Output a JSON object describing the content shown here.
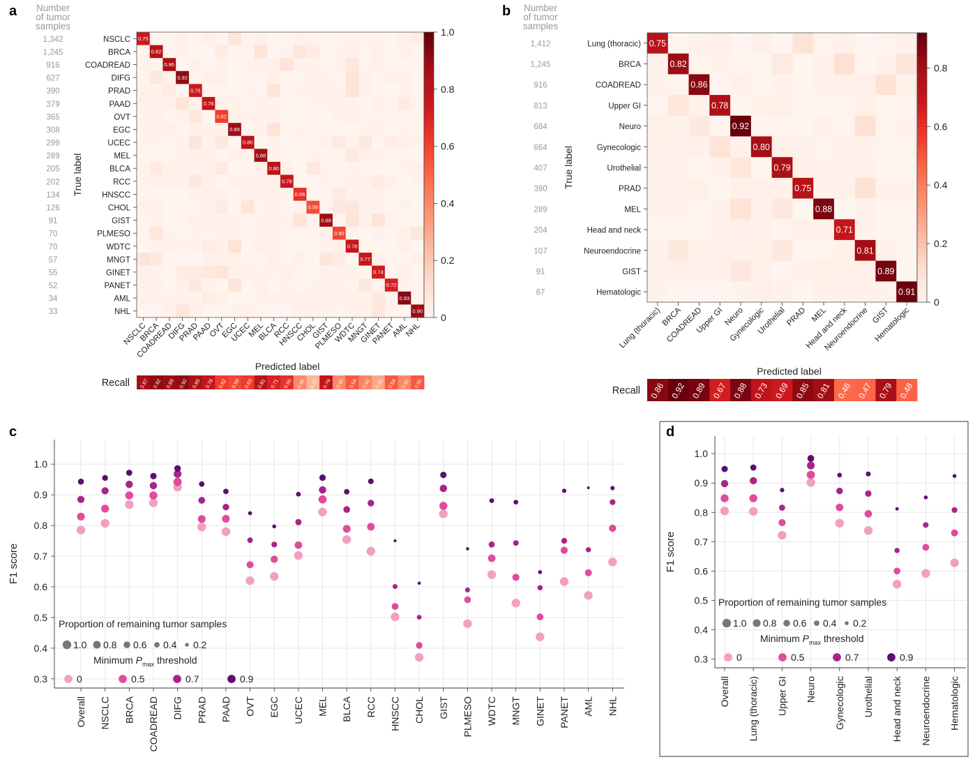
{
  "chart_data": [
    {
      "panel": "a",
      "type": "heatmap",
      "samples_header": "Number of tumor samples",
      "ylabel": "True label",
      "xlabel": "Predicted label",
      "recall_label": "Recall",
      "colorbar_ticks": [
        "1.0",
        "0.8",
        "0.6",
        "0.4",
        "0.2",
        "0"
      ],
      "vmax": 1.0,
      "classes": [
        "NSCLC",
        "BRCA",
        "COADREAD",
        "DIFG",
        "PRAD",
        "PAAD",
        "OVT",
        "EGC",
        "UCEC",
        "MEL",
        "BLCA",
        "RCC",
        "HNSCC",
        "CHOL",
        "GIST",
        "PLMESO",
        "WDTC",
        "MNGT",
        "GINET",
        "PANET",
        "AML",
        "NHL"
      ],
      "sample_counts": [
        "1,342",
        "1,245",
        "916",
        "627",
        "390",
        "379",
        "365",
        "308",
        "299",
        "289",
        "205",
        "202",
        "134",
        "126",
        "91",
        "70",
        "70",
        "57",
        "55",
        "52",
        "34",
        "33"
      ],
      "diagonal": [
        "0.75",
        "0.82",
        "0.86",
        "0.92",
        "0.75",
        "0.78",
        "0.62",
        "0.89",
        "0.80",
        "0.88",
        "0.80",
        "0.78",
        "0.66",
        "0.58",
        "0.89",
        "0.60",
        "0.78",
        "0.77",
        "0.74",
        "0.72",
        "0.93",
        "0.90"
      ],
      "recall": [
        "0.87",
        "0.92",
        "0.89",
        "0.92",
        "0.85",
        "0.78",
        "0.62",
        "0.59",
        "0.63",
        "0.81",
        "0.71",
        "0.66",
        "0.40",
        "0.27",
        "0.79",
        "0.40",
        "0.54",
        "0.42",
        "0.31",
        "0.54",
        "0.41",
        "0.55"
      ]
    },
    {
      "panel": "b",
      "type": "heatmap",
      "samples_header": "Number of tumor samples",
      "ylabel": "True label",
      "xlabel": "Predicted label",
      "recall_label": "Recall",
      "colorbar_ticks": [
        "0.8",
        "0.6",
        "0.4",
        "0.2",
        "0"
      ],
      "vmax": 0.92,
      "classes": [
        "Lung (thoracic)",
        "BRCA",
        "COADREAD",
        "Upper GI",
        "Neuro",
        "Gynecologic",
        "Urothelial",
        "PRAD",
        "MEL",
        "Head and neck",
        "Neuroendocrine",
        "GIST",
        "Hematologic"
      ],
      "sample_counts": [
        "1,412",
        "1,245",
        "916",
        "813",
        "684",
        "664",
        "407",
        "390",
        "289",
        "204",
        "107",
        "91",
        "67"
      ],
      "diagonal": [
        "0.75",
        "0.82",
        "0.86",
        "0.78",
        "0.92",
        "0.80",
        "0.79",
        "0.75",
        "0.88",
        "0.71",
        "0.81",
        "0.89",
        "0.91"
      ],
      "recall": [
        "0.86",
        "0.92",
        "0.89",
        "0.67",
        "0.88",
        "0.73",
        "0.69",
        "0.85",
        "0.81",
        "0.46",
        "0.47",
        "0.79",
        "0.48"
      ]
    },
    {
      "panel": "c",
      "type": "scatter",
      "ylabel": "F1 score",
      "ylim": [
        0.27,
        1.08
      ],
      "yticks": [
        "1.0",
        "0.9",
        "0.8",
        "0.7",
        "0.6",
        "0.5",
        "0.4",
        "0.3"
      ],
      "categories": [
        "Overall",
        "NSCLC",
        "BRCA",
        "COADREAD",
        "DIFG",
        "PRAD",
        "PAAD",
        "OVT",
        "EGC",
        "UCEC",
        "MEL",
        "BLCA",
        "RCC",
        "HNSCC",
        "CHOL",
        "GIST",
        "PLMESO",
        "WDTC",
        "MNGT",
        "GINET",
        "PANET",
        "AML",
        "NHL"
      ],
      "series": [
        {
          "name": "0",
          "values": [
            0.785,
            0.807,
            0.868,
            0.874,
            0.925,
            0.795,
            0.78,
            0.62,
            0.634,
            0.702,
            0.844,
            0.754,
            0.716,
            0.502,
            0.37,
            0.838,
            0.48,
            0.64,
            0.547,
            0.437,
            0.617,
            0.572,
            0.681
          ],
          "proportion": [
            1,
            1,
            1,
            1,
            1,
            1,
            1,
            1,
            1,
            1,
            1,
            1,
            1,
            1,
            1,
            1,
            1,
            1,
            1,
            1,
            1,
            1,
            1
          ]
        },
        {
          "name": "0.5",
          "values": [
            0.829,
            0.855,
            0.898,
            0.898,
            0.942,
            0.821,
            0.822,
            0.672,
            0.69,
            0.736,
            0.885,
            0.789,
            0.796,
            0.536,
            0.409,
            0.864,
            0.558,
            0.693,
            0.631,
            0.502,
            0.719,
            0.646,
            0.791
          ],
          "proportion": [
            0.82,
            0.82,
            0.86,
            0.86,
            0.92,
            0.8,
            0.8,
            0.68,
            0.7,
            0.75,
            0.88,
            0.8,
            0.78,
            0.62,
            0.58,
            0.86,
            0.6,
            0.76,
            0.68,
            0.62,
            0.68,
            0.64,
            0.7
          ]
        },
        {
          "name": "0.7",
          "values": [
            0.885,
            0.913,
            0.934,
            0.93,
            0.968,
            0.882,
            0.86,
            0.752,
            0.738,
            0.811,
            0.916,
            0.852,
            0.873,
            0.601,
            0.501,
            0.921,
            0.59,
            0.738,
            0.743,
            0.597,
            0.75,
            0.721,
            0.876
          ],
          "proportion": [
            0.68,
            0.68,
            0.72,
            0.72,
            0.8,
            0.62,
            0.58,
            0.42,
            0.44,
            0.52,
            0.72,
            0.6,
            0.58,
            0.32,
            0.3,
            0.72,
            0.32,
            0.5,
            0.42,
            0.36,
            0.46,
            0.36,
            0.44
          ]
        },
        {
          "name": "0.9",
          "values": [
            0.943,
            0.955,
            0.972,
            0.961,
            0.986,
            0.935,
            0.911,
            0.84,
            0.797,
            0.902,
            0.956,
            0.91,
            0.944,
            0.75,
            0.612,
            0.965,
            0.724,
            0.881,
            0.876,
            0.648,
            0.913,
            0.923,
            0.922
          ],
          "proportion": [
            0.48,
            0.46,
            0.5,
            0.55,
            0.58,
            0.4,
            0.4,
            0.22,
            0.2,
            0.3,
            0.55,
            0.4,
            0.42,
            0.12,
            0.14,
            0.55,
            0.14,
            0.3,
            0.3,
            0.2,
            0.24,
            0.1,
            0.24
          ]
        }
      ],
      "legend_size_title": "Proportion of remaining tumor samples",
      "legend_sizes": [
        "1.0",
        "0.8",
        "0.6",
        "0.4",
        "0.2"
      ],
      "legend_size_values": [
        1.0,
        0.8,
        0.6,
        0.4,
        0.2
      ],
      "legend_color_title_pre": "Minimum ",
      "legend_color_title_var": "P",
      "legend_color_title_sub": "max",
      "legend_color_title_post": " threshold",
      "legend_thresholds": [
        "0",
        "0.5",
        "0.7",
        "0.9"
      ]
    },
    {
      "panel": "d",
      "type": "scatter",
      "ylabel": "F1 score",
      "ylim": [
        0.27,
        1.06
      ],
      "yticks": [
        "1.0",
        "0.9",
        "0.8",
        "0.7",
        "0.6",
        "0.5",
        "0.4",
        "0.3"
      ],
      "categories": [
        "Overall",
        "Lung (thoracic)",
        "Upper GI",
        "Neuro",
        "Gynecologic",
        "Urothelial",
        "Head and neck",
        "Neuroendocrine",
        "Hematologic"
      ],
      "series": [
        {
          "name": "0",
          "values": [
            0.805,
            0.803,
            0.722,
            0.902,
            0.763,
            0.738,
            0.555,
            0.592,
            0.628
          ],
          "proportion": [
            1,
            1,
            1,
            1,
            1,
            1,
            1,
            1,
            1
          ]
        },
        {
          "name": "0.5",
          "values": [
            0.848,
            0.848,
            0.765,
            0.928,
            0.817,
            0.795,
            0.6,
            0.681,
            0.73
          ],
          "proportion": [
            0.84,
            0.84,
            0.68,
            0.9,
            0.76,
            0.74,
            0.6,
            0.62,
            0.64
          ]
        },
        {
          "name": "0.7",
          "values": [
            0.898,
            0.908,
            0.816,
            0.96,
            0.873,
            0.864,
            0.67,
            0.757,
            0.808
          ],
          "proportion": [
            0.7,
            0.7,
            0.5,
            0.8,
            0.58,
            0.56,
            0.36,
            0.42,
            0.44
          ]
        },
        {
          "name": "0.9",
          "values": [
            0.948,
            0.953,
            0.876,
            0.984,
            0.927,
            0.931,
            0.812,
            0.851,
            0.924
          ],
          "proportion": [
            0.52,
            0.5,
            0.26,
            0.62,
            0.3,
            0.32,
            0.16,
            0.2,
            0.2
          ]
        }
      ],
      "legend_size_title": "Proportion of remaining tumor samples",
      "legend_sizes": [
        "1.0",
        "0.8",
        "0.6",
        "0.4",
        "0.2"
      ],
      "legend_size_values": [
        1.0,
        0.8,
        0.6,
        0.4,
        0.2
      ],
      "legend_color_title_pre": "Minimum ",
      "legend_color_title_var": "P",
      "legend_color_title_sub": "max",
      "legend_color_title_post": " threshold",
      "legend_thresholds": [
        "0",
        "0.5",
        "0.7",
        "0.9"
      ]
    }
  ],
  "panel_letters": [
    "a",
    "b",
    "c",
    "d"
  ],
  "colors": {
    "threshold_0": "#f2a0c0",
    "threshold_0.5": "#df4c9c",
    "threshold_0.7": "#a8248c",
    "threshold_0.9": "#5a0f6e",
    "heat_low": "#fff5f0",
    "heat_high": "#67000d"
  }
}
